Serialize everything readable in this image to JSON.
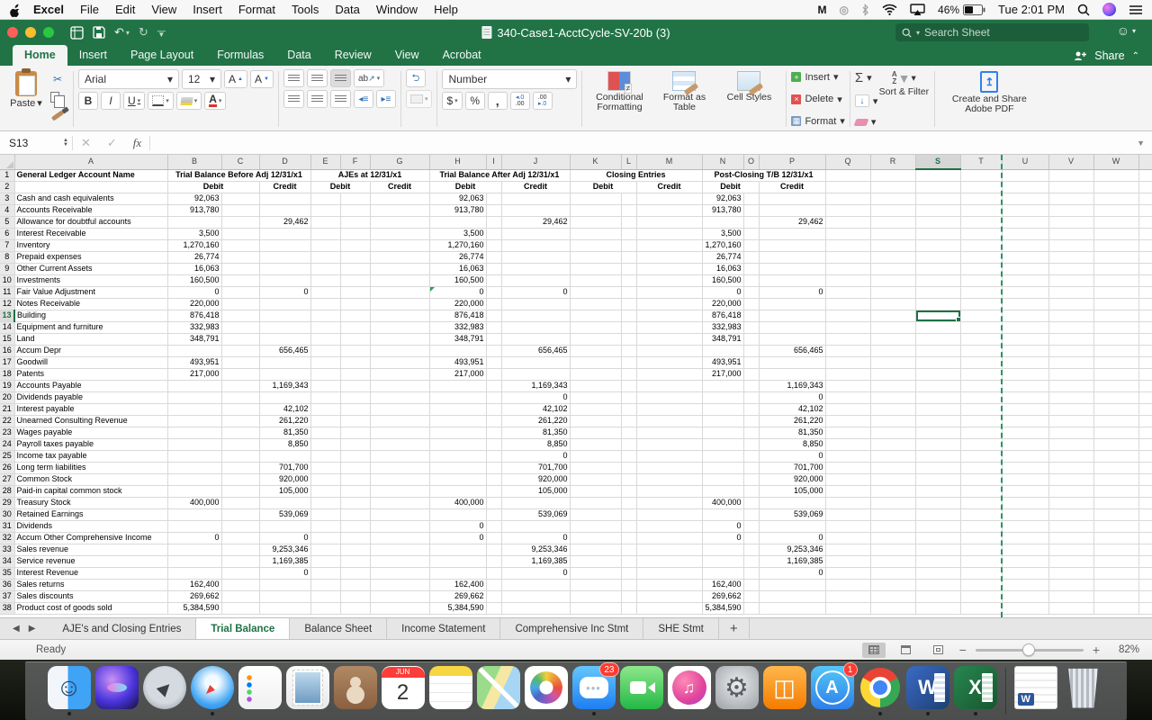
{
  "menu_bar": {
    "items": [
      "Excel",
      "File",
      "Edit",
      "View",
      "Insert",
      "Format",
      "Tools",
      "Data",
      "Window",
      "Help"
    ],
    "battery": "46%",
    "clock": "Tue 2:01 PM"
  },
  "title_bar": {
    "title": "340-Case1-AcctCycle-SV-20b (3)",
    "search_placeholder": "Search Sheet"
  },
  "ribbon_tabs": [
    "Home",
    "Insert",
    "Page Layout",
    "Formulas",
    "Data",
    "Review",
    "View",
    "Acrobat"
  ],
  "share_label": "Share",
  "ribbon": {
    "paste": "Paste",
    "font_name": "Arial",
    "font_size": "12",
    "number_format": "Number",
    "conditional_formatting": "Conditional Formatting",
    "format_as_table": "Format as Table",
    "cell_styles": "Cell Styles",
    "insert": "Insert",
    "delete": "Delete",
    "format": "Format",
    "sort_filter": "Sort & Filter",
    "adobe_pdf": "Create and Share Adobe PDF"
  },
  "formula_bar": {
    "name_box": "S13",
    "fx_label": "fx",
    "formula": ""
  },
  "grid": {
    "columns": [
      "A",
      "B",
      "C",
      "D",
      "E",
      "F",
      "G",
      "H",
      "I",
      "J",
      "K",
      "L",
      "M",
      "N",
      "O",
      "P",
      "Q",
      "R",
      "S",
      "T",
      "U",
      "V",
      "W"
    ],
    "selected": {
      "row": 13,
      "col": "S"
    },
    "header_row1": {
      "account": "General Ledger Account Name",
      "groups": [
        "Trial Balance Before Adj 12/31/x1",
        "AJEs at 12/31/x1",
        "Trial Balance After Adj 12/31/x1",
        "Closing Entries",
        "Post-Closing T/B 12/31/x1"
      ]
    },
    "debit_label": "Debit",
    "credit_label": "Credit",
    "rows": [
      {
        "a": "Cash and cash equivalents",
        "bd": "92,063",
        "bc": "",
        "ad": "92,063",
        "ac": "",
        "pd": "92,063",
        "pc": ""
      },
      {
        "a": "Accounts Receivable",
        "bd": "913,780",
        "bc": "",
        "ad": "913,780",
        "ac": "",
        "pd": "913,780",
        "pc": ""
      },
      {
        "a": "Allowance for doubtful accounts",
        "bd": "",
        "bc": "29,462",
        "ad": "",
        "ac": "29,462",
        "pd": "",
        "pc": "29,462"
      },
      {
        "a": "Interest Receivable",
        "bd": "3,500",
        "bc": "",
        "ad": "3,500",
        "ac": "",
        "pd": "3,500",
        "pc": ""
      },
      {
        "a": "Inventory",
        "bd": "1,270,160",
        "bc": "",
        "ad": "1,270,160",
        "ac": "",
        "pd": "1,270,160",
        "pc": ""
      },
      {
        "a": "Prepaid expenses",
        "bd": "26,774",
        "bc": "",
        "ad": "26,774",
        "ac": "",
        "pd": "26,774",
        "pc": ""
      },
      {
        "a": "Other Current Assets",
        "bd": "16,063",
        "bc": "",
        "ad": "16,063",
        "ac": "",
        "pd": "16,063",
        "pc": ""
      },
      {
        "a": "Investments",
        "bd": "160,500",
        "bc": "",
        "ad": "160,500",
        "ac": "",
        "pd": "160,500",
        "pc": ""
      },
      {
        "a": "Fair Value Adjustment",
        "bd": "0",
        "bc": "0",
        "ad": "0",
        "ac": "0",
        "pd": "0",
        "pc": "0",
        "flag": true
      },
      {
        "a": "Notes Receivable",
        "bd": "220,000",
        "bc": "",
        "ad": "220,000",
        "ac": "",
        "pd": "220,000",
        "pc": ""
      },
      {
        "a": "Building",
        "bd": "876,418",
        "bc": "",
        "ad": "876,418",
        "ac": "",
        "pd": "876,418",
        "pc": ""
      },
      {
        "a": "Equipment and furniture",
        "bd": "332,983",
        "bc": "",
        "ad": "332,983",
        "ac": "",
        "pd": "332,983",
        "pc": ""
      },
      {
        "a": "Land",
        "bd": "348,791",
        "bc": "",
        "ad": "348,791",
        "ac": "",
        "pd": "348,791",
        "pc": ""
      },
      {
        "a": "Accum Depr",
        "bd": "",
        "bc": "656,465",
        "ad": "",
        "ac": "656,465",
        "pd": "",
        "pc": "656,465"
      },
      {
        "a": "Goodwill",
        "bd": "493,951",
        "bc": "",
        "ad": "493,951",
        "ac": "",
        "pd": "493,951",
        "pc": ""
      },
      {
        "a": "Patents",
        "bd": "217,000",
        "bc": "",
        "ad": "217,000",
        "ac": "",
        "pd": "217,000",
        "pc": ""
      },
      {
        "a": "Accounts Payable",
        "bd": "",
        "bc": "1,169,343",
        "ad": "",
        "ac": "1,169,343",
        "pd": "",
        "pc": "1,169,343"
      },
      {
        "a": "Dividends payable",
        "bd": "",
        "bc": "",
        "ad": "",
        "ac": "0",
        "pd": "",
        "pc": "0"
      },
      {
        "a": "Interest payable",
        "bd": "",
        "bc": "42,102",
        "ad": "",
        "ac": "42,102",
        "pd": "",
        "pc": "42,102"
      },
      {
        "a": "Unearned Consulting Revenue",
        "bd": "",
        "bc": "261,220",
        "ad": "",
        "ac": "261,220",
        "pd": "",
        "pc": "261,220"
      },
      {
        "a": "Wages payable",
        "bd": "",
        "bc": "81,350",
        "ad": "",
        "ac": "81,350",
        "pd": "",
        "pc": "81,350"
      },
      {
        "a": "Payroll taxes payable",
        "bd": "",
        "bc": "8,850",
        "ad": "",
        "ac": "8,850",
        "pd": "",
        "pc": "8,850"
      },
      {
        "a": "Income tax payable",
        "bd": "",
        "bc": "",
        "ad": "",
        "ac": "0",
        "pd": "",
        "pc": "0"
      },
      {
        "a": "Long term liabilities",
        "bd": "",
        "bc": "701,700",
        "ad": "",
        "ac": "701,700",
        "pd": "",
        "pc": "701,700"
      },
      {
        "a": "Common Stock",
        "bd": "",
        "bc": "920,000",
        "ad": "",
        "ac": "920,000",
        "pd": "",
        "pc": "920,000"
      },
      {
        "a": "Paid-in capital common stock",
        "bd": "",
        "bc": "105,000",
        "ad": "",
        "ac": "105,000",
        "pd": "",
        "pc": "105,000"
      },
      {
        "a": "Treasury Stock",
        "bd": "400,000",
        "bc": "",
        "ad": "400,000",
        "ac": "",
        "pd": "400,000",
        "pc": ""
      },
      {
        "a": "Retained Earnings",
        "bd": "",
        "bc": "539,069",
        "ad": "",
        "ac": "539,069",
        "pd": "",
        "pc": "539,069"
      },
      {
        "a": "Dividends",
        "bd": "",
        "bc": "",
        "ad": "0",
        "ac": "",
        "pd": "0",
        "pc": ""
      },
      {
        "a": "Accum Other Comprehensive Income",
        "bd": "0",
        "bc": "0",
        "ad": "0",
        "ac": "0",
        "pd": "0",
        "pc": "0"
      },
      {
        "a": "Sales revenue",
        "bd": "",
        "bc": "9,253,346",
        "ad": "",
        "ac": "9,253,346",
        "pd": "",
        "pc": "9,253,346"
      },
      {
        "a": "Service revenue",
        "bd": "",
        "bc": "1,169,385",
        "ad": "",
        "ac": "1,169,385",
        "pd": "",
        "pc": "1,169,385"
      },
      {
        "a": "Interest Revenue",
        "bd": "",
        "bc": "0",
        "ad": "",
        "ac": "0",
        "pd": "",
        "pc": "0"
      },
      {
        "a": "Sales returns",
        "bd": "162,400",
        "bc": "",
        "ad": "162,400",
        "ac": "",
        "pd": "162,400",
        "pc": ""
      },
      {
        "a": "Sales discounts",
        "bd": "269,662",
        "bc": "",
        "ad": "269,662",
        "ac": "",
        "pd": "269,662",
        "pc": ""
      },
      {
        "a": "Product cost of goods sold",
        "bd": "5,384,590",
        "bc": "",
        "ad": "5,384,590",
        "ac": "",
        "pd": "5,384,590",
        "pc": ""
      }
    ]
  },
  "sheet_tabs": {
    "tabs": [
      "AJE's and Closing Entries",
      "Trial Balance",
      "Balance Sheet",
      "Income Statement",
      "Comprehensive Inc Stmt",
      "SHE Stmt"
    ],
    "active": "Trial Balance",
    "add_label": "+"
  },
  "status_bar": {
    "mode": "Ready",
    "zoom": "82%"
  },
  "dock": {
    "items": [
      {
        "name": "finder-icon",
        "running": true
      },
      {
        "name": "siri-icon"
      },
      {
        "name": "launchpad-icon"
      },
      {
        "name": "safari-icon",
        "running": true
      },
      {
        "name": "reminders-icon"
      },
      {
        "name": "mail-icon"
      },
      {
        "name": "contacts-icon"
      },
      {
        "name": "calendar-icon",
        "month": "JUN",
        "day": "2"
      },
      {
        "name": "notes-icon"
      },
      {
        "name": "maps-icon"
      },
      {
        "name": "photos-icon"
      },
      {
        "name": "messages-icon",
        "badge": "23",
        "running": true
      },
      {
        "name": "facetime-icon"
      },
      {
        "name": "itunes-icon"
      },
      {
        "name": "preferences-icon"
      },
      {
        "name": "ibooks-icon"
      },
      {
        "name": "appstore-icon",
        "badge": "1"
      },
      {
        "name": "chrome-icon",
        "running": true
      },
      {
        "name": "word-icon",
        "running": true
      },
      {
        "name": "excel-icon",
        "running": true
      },
      {
        "name": "divider"
      },
      {
        "name": "word-doc-icon"
      },
      {
        "name": "trash-icon"
      }
    ]
  }
}
